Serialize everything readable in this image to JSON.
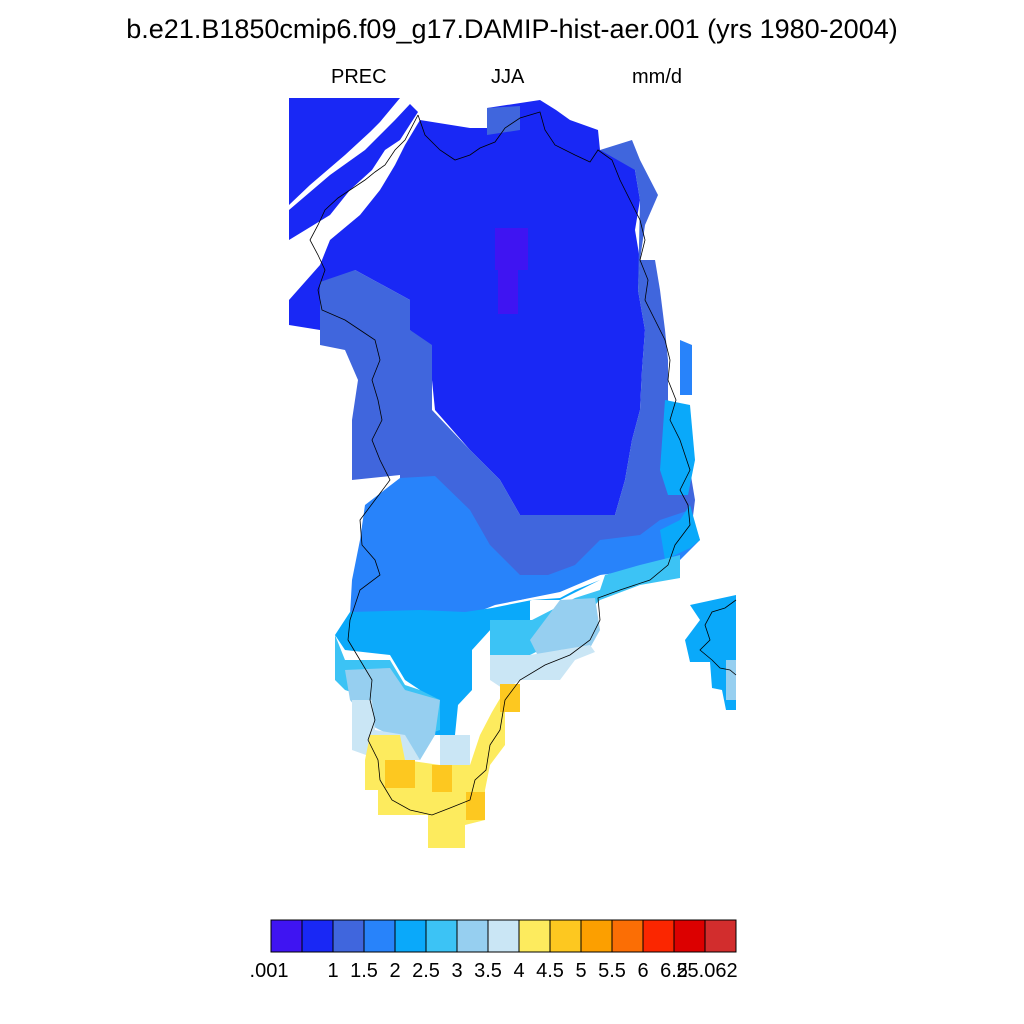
{
  "title": "b.e21.B1850cmip6.f09_g17.DAMIP-hist-aer.001 (yrs 1980-2004)",
  "variable": "PREC",
  "season": "JJA",
  "units": "mm/d",
  "colorbar": {
    "colors": [
      "#3f14f2",
      "#1928f5",
      "#4066dd",
      "#2883fa",
      "#0aa9fa",
      "#3cc3f5",
      "#96cff0",
      "#cae6f5",
      "#fdeb5e",
      "#fdc820",
      "#fc9f00",
      "#fb6e05",
      "#fb2600",
      "#dc0000",
      "#d22d2d"
    ],
    "labels": [
      ".001",
      "1",
      "1.5",
      "2",
      "2.5",
      "3",
      "3.5",
      "4",
      "4.5",
      "5",
      "5.5",
      "6",
      "6.5",
      "25.062"
    ]
  },
  "map": {
    "region": "Greenland",
    "fill_colors": {
      "deep_blue": "#1928f5",
      "violet": "#3f14f2",
      "royal_blue": "#4066dd",
      "mid_blue": "#2883fa",
      "azure": "#0aa9fa",
      "sky": "#3cc3f5",
      "light_sky": "#96cff0",
      "pale": "#cae6f5",
      "yellow": "#fdeb5e",
      "gold": "#fdc820"
    }
  }
}
